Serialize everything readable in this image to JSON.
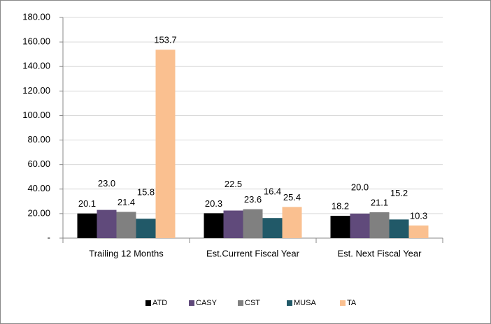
{
  "chart_data": {
    "type": "bar",
    "categories": [
      "Trailing 12 Months",
      "Est.Current Fiscal Year",
      "Est. Next Fiscal Year"
    ],
    "series": [
      {
        "name": "ATD",
        "color": "#000000",
        "values": [
          20.1,
          20.3,
          18.2
        ],
        "value_labels": [
          "20.1",
          "20.3",
          "18.2"
        ]
      },
      {
        "name": "CASY",
        "color": "#604a7b",
        "values": [
          23.0,
          22.5,
          20.0
        ],
        "value_labels": [
          "23.0",
          "22.5",
          "20.0"
        ]
      },
      {
        "name": "CST",
        "color": "#808080",
        "values": [
          21.4,
          23.6,
          21.1
        ],
        "value_labels": [
          "21.4",
          "23.6",
          "21.1"
        ]
      },
      {
        "name": "MUSA",
        "color": "#215968",
        "values": [
          15.8,
          16.4,
          15.2
        ],
        "value_labels": [
          "15.8",
          "16.4",
          "15.2"
        ]
      },
      {
        "name": "TA",
        "color": "#fac090",
        "values": [
          153.7,
          25.4,
          10.3
        ],
        "value_labels": [
          "153.7",
          "25.4",
          "10.3"
        ]
      }
    ],
    "ylim": [
      0,
      180
    ],
    "yticks": [
      {
        "value": 0,
        "label": "-"
      },
      {
        "value": 20,
        "label": "20.00"
      },
      {
        "value": 40,
        "label": "40.00"
      },
      {
        "value": 60,
        "label": "60.00"
      },
      {
        "value": 80,
        "label": "80.00"
      },
      {
        "value": 100,
        "label": "100.00"
      },
      {
        "value": 120,
        "label": "120.00"
      },
      {
        "value": 140,
        "label": "140.00"
      },
      {
        "value": 160,
        "label": "160.00"
      },
      {
        "value": 180,
        "label": "180.00"
      }
    ],
    "grid": true,
    "legend": "bottom"
  }
}
